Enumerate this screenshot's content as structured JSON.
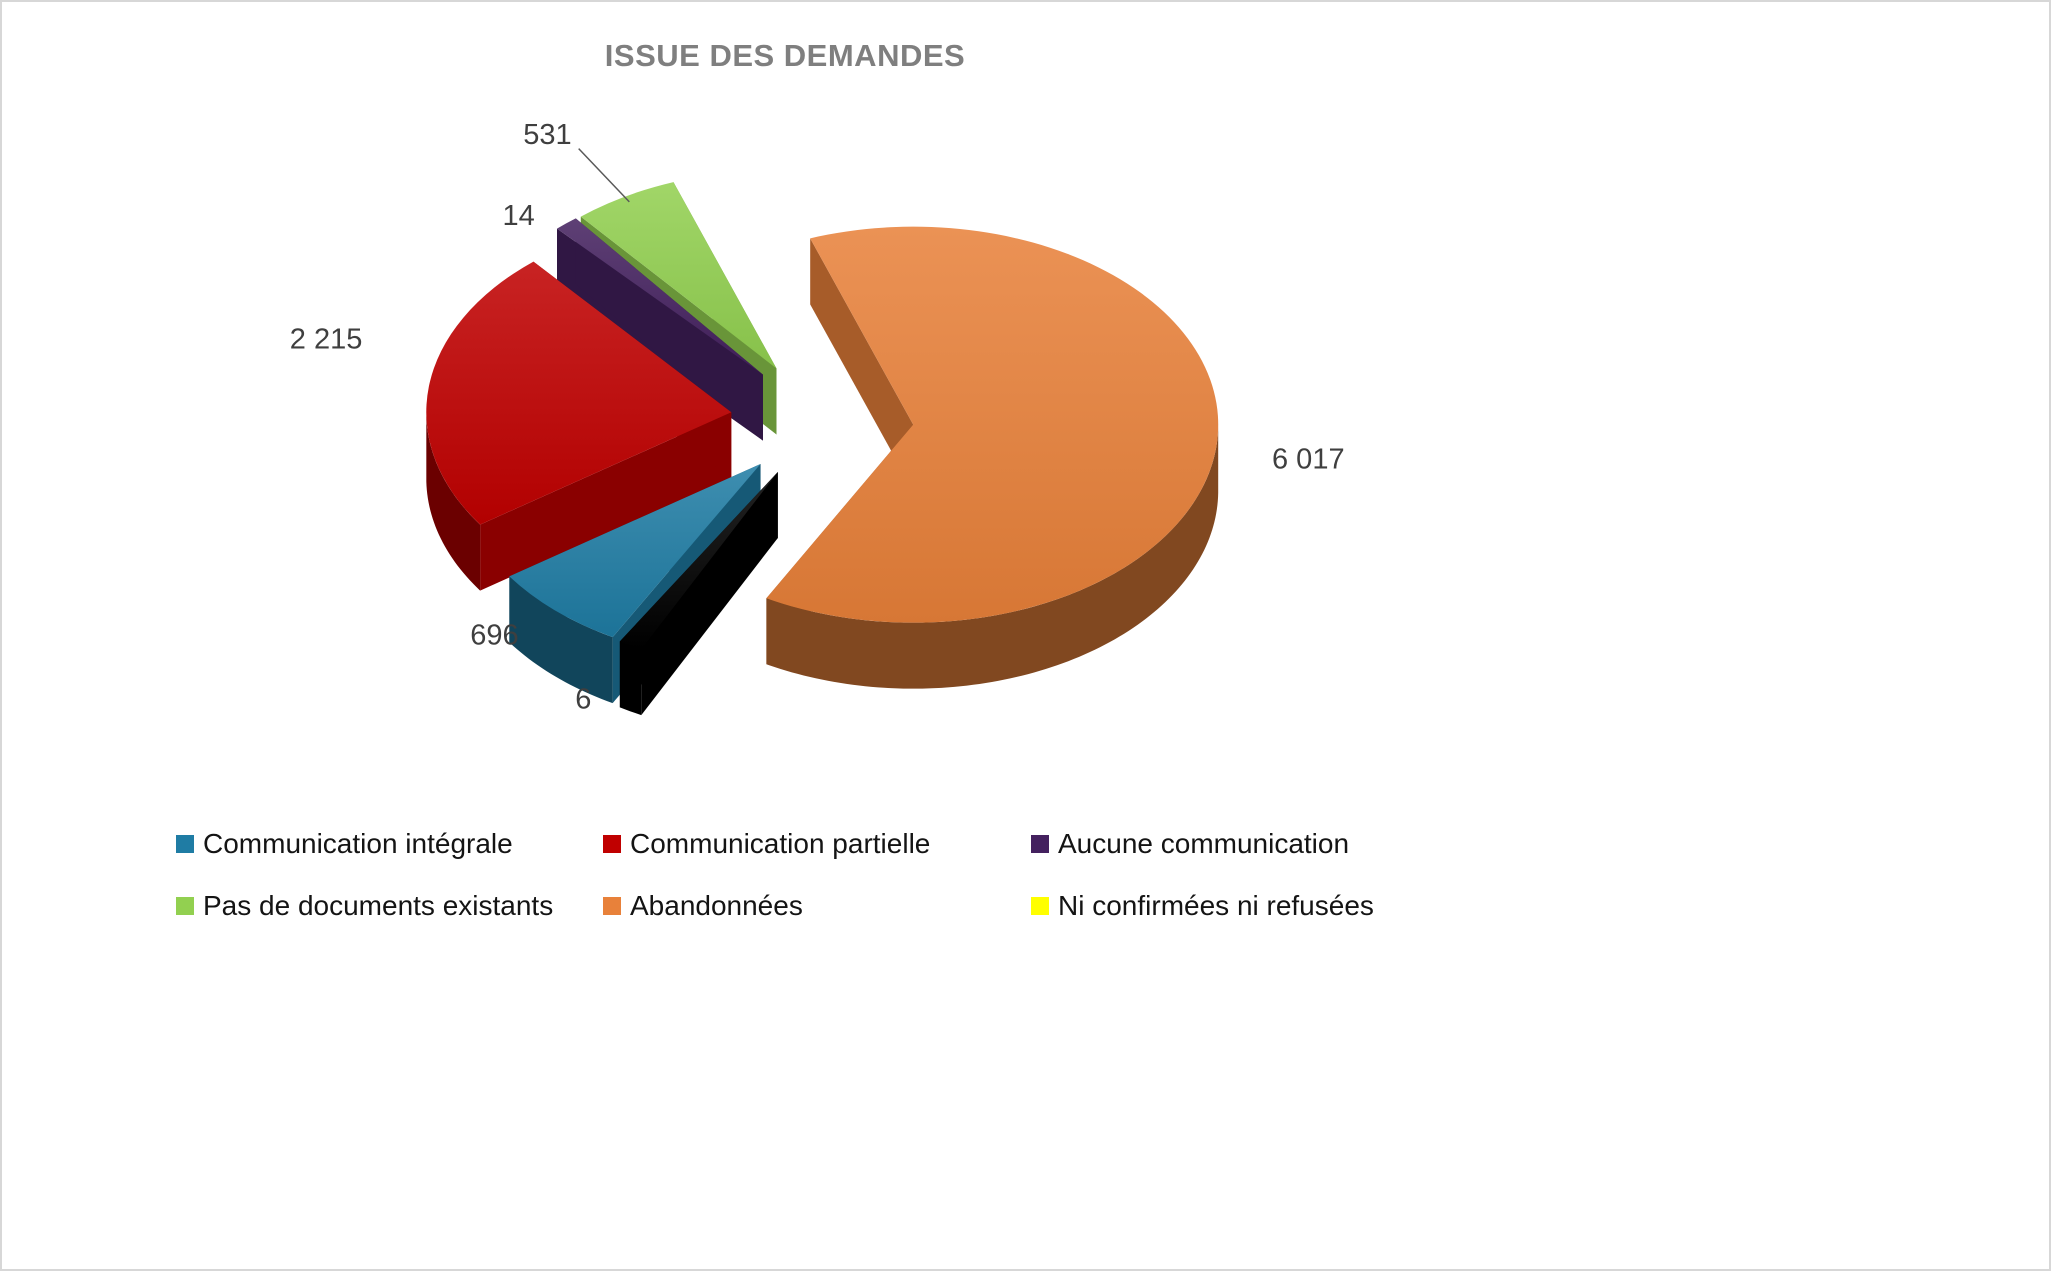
{
  "title": "ISSUE DES DEMANDES",
  "chart_data": {
    "type": "pie",
    "style": "3d-exploded-pie",
    "title": "ISSUE DES DEMANDES",
    "legend_position": "bottom",
    "series": [
      {
        "label": "Communication intégrale",
        "value": 696,
        "display": "696",
        "color": "#1F7CA4"
      },
      {
        "label": "Communication partielle",
        "value": 2215,
        "display": "2 215",
        "color": "#C00000"
      },
      {
        "label": "Aucune communication",
        "value": 14,
        "display": "14",
        "color": "#44215F"
      },
      {
        "label": "Pas de documents existants",
        "value": 531,
        "display": "531",
        "color": "#92D050"
      },
      {
        "label": "Abandonnées",
        "value": 6017,
        "display": "6 017",
        "color": "#E8813A"
      },
      {
        "label": "Ni confirmées ni refusées",
        "value": 6,
        "display": "6",
        "color": "#FFFF00"
      }
    ]
  }
}
